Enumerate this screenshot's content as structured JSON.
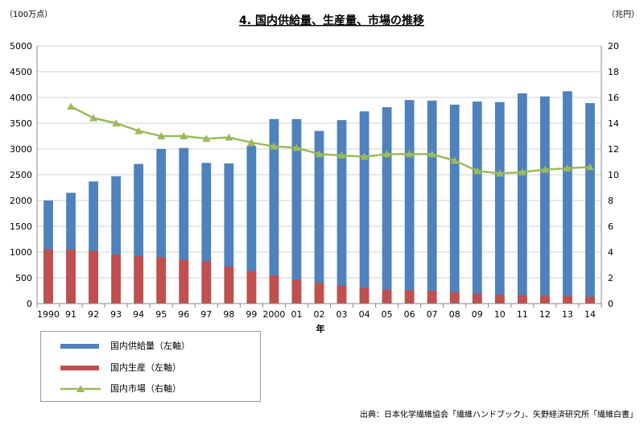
{
  "chart_data": {
    "type": "bar",
    "title": "4. 国内供給量、生産量、市場の推移",
    "left_unit": "（100万点）",
    "right_unit": "（兆円）",
    "xlabel": "年",
    "categories": [
      "1990",
      "91",
      "92",
      "93",
      "94",
      "95",
      "96",
      "97",
      "98",
      "99",
      "2000",
      "01",
      "02",
      "03",
      "04",
      "05",
      "06",
      "07",
      "08",
      "09",
      "10",
      "11",
      "12",
      "13",
      "14"
    ],
    "y_left": {
      "min": 0,
      "max": 5000,
      "step": 500
    },
    "y_right": {
      "min": 0,
      "max": 20,
      "step": 2
    },
    "series": [
      {
        "name": "国内供給量（左軸）",
        "type": "bar",
        "axis": "left",
        "color": "#4f81bd",
        "values": [
          2000,
          2150,
          2370,
          2470,
          2710,
          3000,
          3020,
          2730,
          2720,
          3060,
          3580,
          3580,
          3350,
          3560,
          3730,
          3810,
          3950,
          3940,
          3860,
          3920,
          3910,
          4080,
          4020,
          4120,
          3890
        ]
      },
      {
        "name": "国内生産（左軸）",
        "type": "bar",
        "axis": "left",
        "color": "#c0504d",
        "values": [
          1050,
          1050,
          1020,
          950,
          920,
          900,
          850,
          820,
          720,
          630,
          550,
          460,
          400,
          350,
          310,
          270,
          260,
          250,
          220,
          190,
          175,
          160,
          150,
          140,
          130
        ]
      },
      {
        "name": "国内市場（右軸）",
        "type": "line",
        "axis": "right",
        "color": "#9bbb59",
        "values": [
          null,
          15.3,
          14.4,
          14.0,
          13.4,
          13.0,
          13.0,
          12.8,
          12.9,
          12.5,
          12.2,
          12.1,
          11.6,
          11.5,
          11.4,
          11.6,
          11.6,
          11.6,
          11.1,
          10.3,
          10.1,
          10.2,
          10.4,
          10.5,
          10.6
        ]
      }
    ],
    "legend_position": "bottom-left",
    "grid": true
  },
  "source": "出典：日本化学繊維協会「繊維ハンドブック」、矢野経済研究所「繊維白書」"
}
